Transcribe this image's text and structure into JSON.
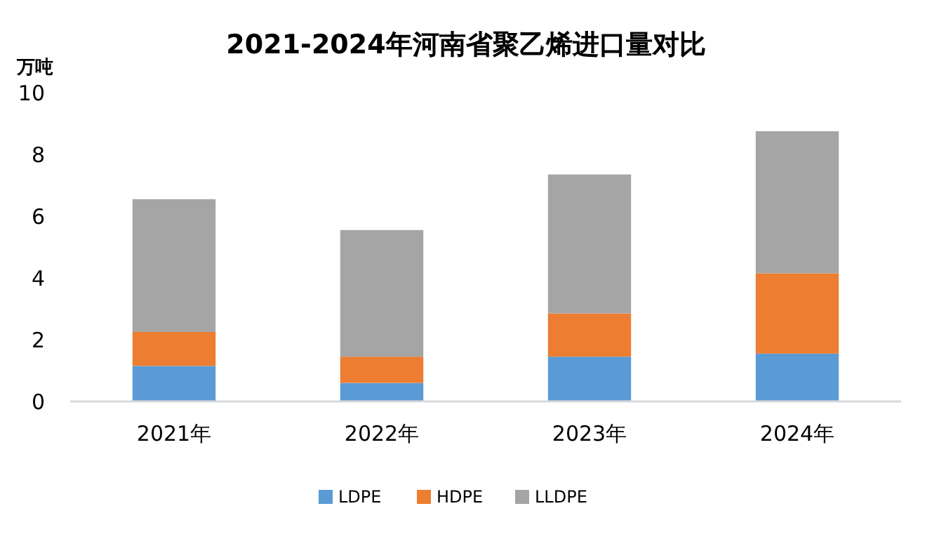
{
  "chart_data": {
    "type": "bar",
    "stacked": true,
    "title": "2021-2024年河南省聚乙烯进口量对比",
    "ylabel": "万吨",
    "categories": [
      "2021年",
      "2022年",
      "2023年",
      "2024年"
    ],
    "series": [
      {
        "name": "LDPE",
        "color": "#5b9bd5",
        "values": [
          1.15,
          0.6,
          1.45,
          1.55
        ]
      },
      {
        "name": "HDPE",
        "color": "#ed7d31",
        "values": [
          1.1,
          0.85,
          1.4,
          2.6
        ]
      },
      {
        "name": "LLDPE",
        "color": "#a5a5a5",
        "values": [
          4.3,
          4.1,
          4.5,
          4.6
        ]
      }
    ],
    "ylim": [
      0,
      10
    ],
    "yticks": [
      0,
      2,
      4,
      6,
      8,
      10
    ],
    "grid": false,
    "legend": "bottom"
  }
}
